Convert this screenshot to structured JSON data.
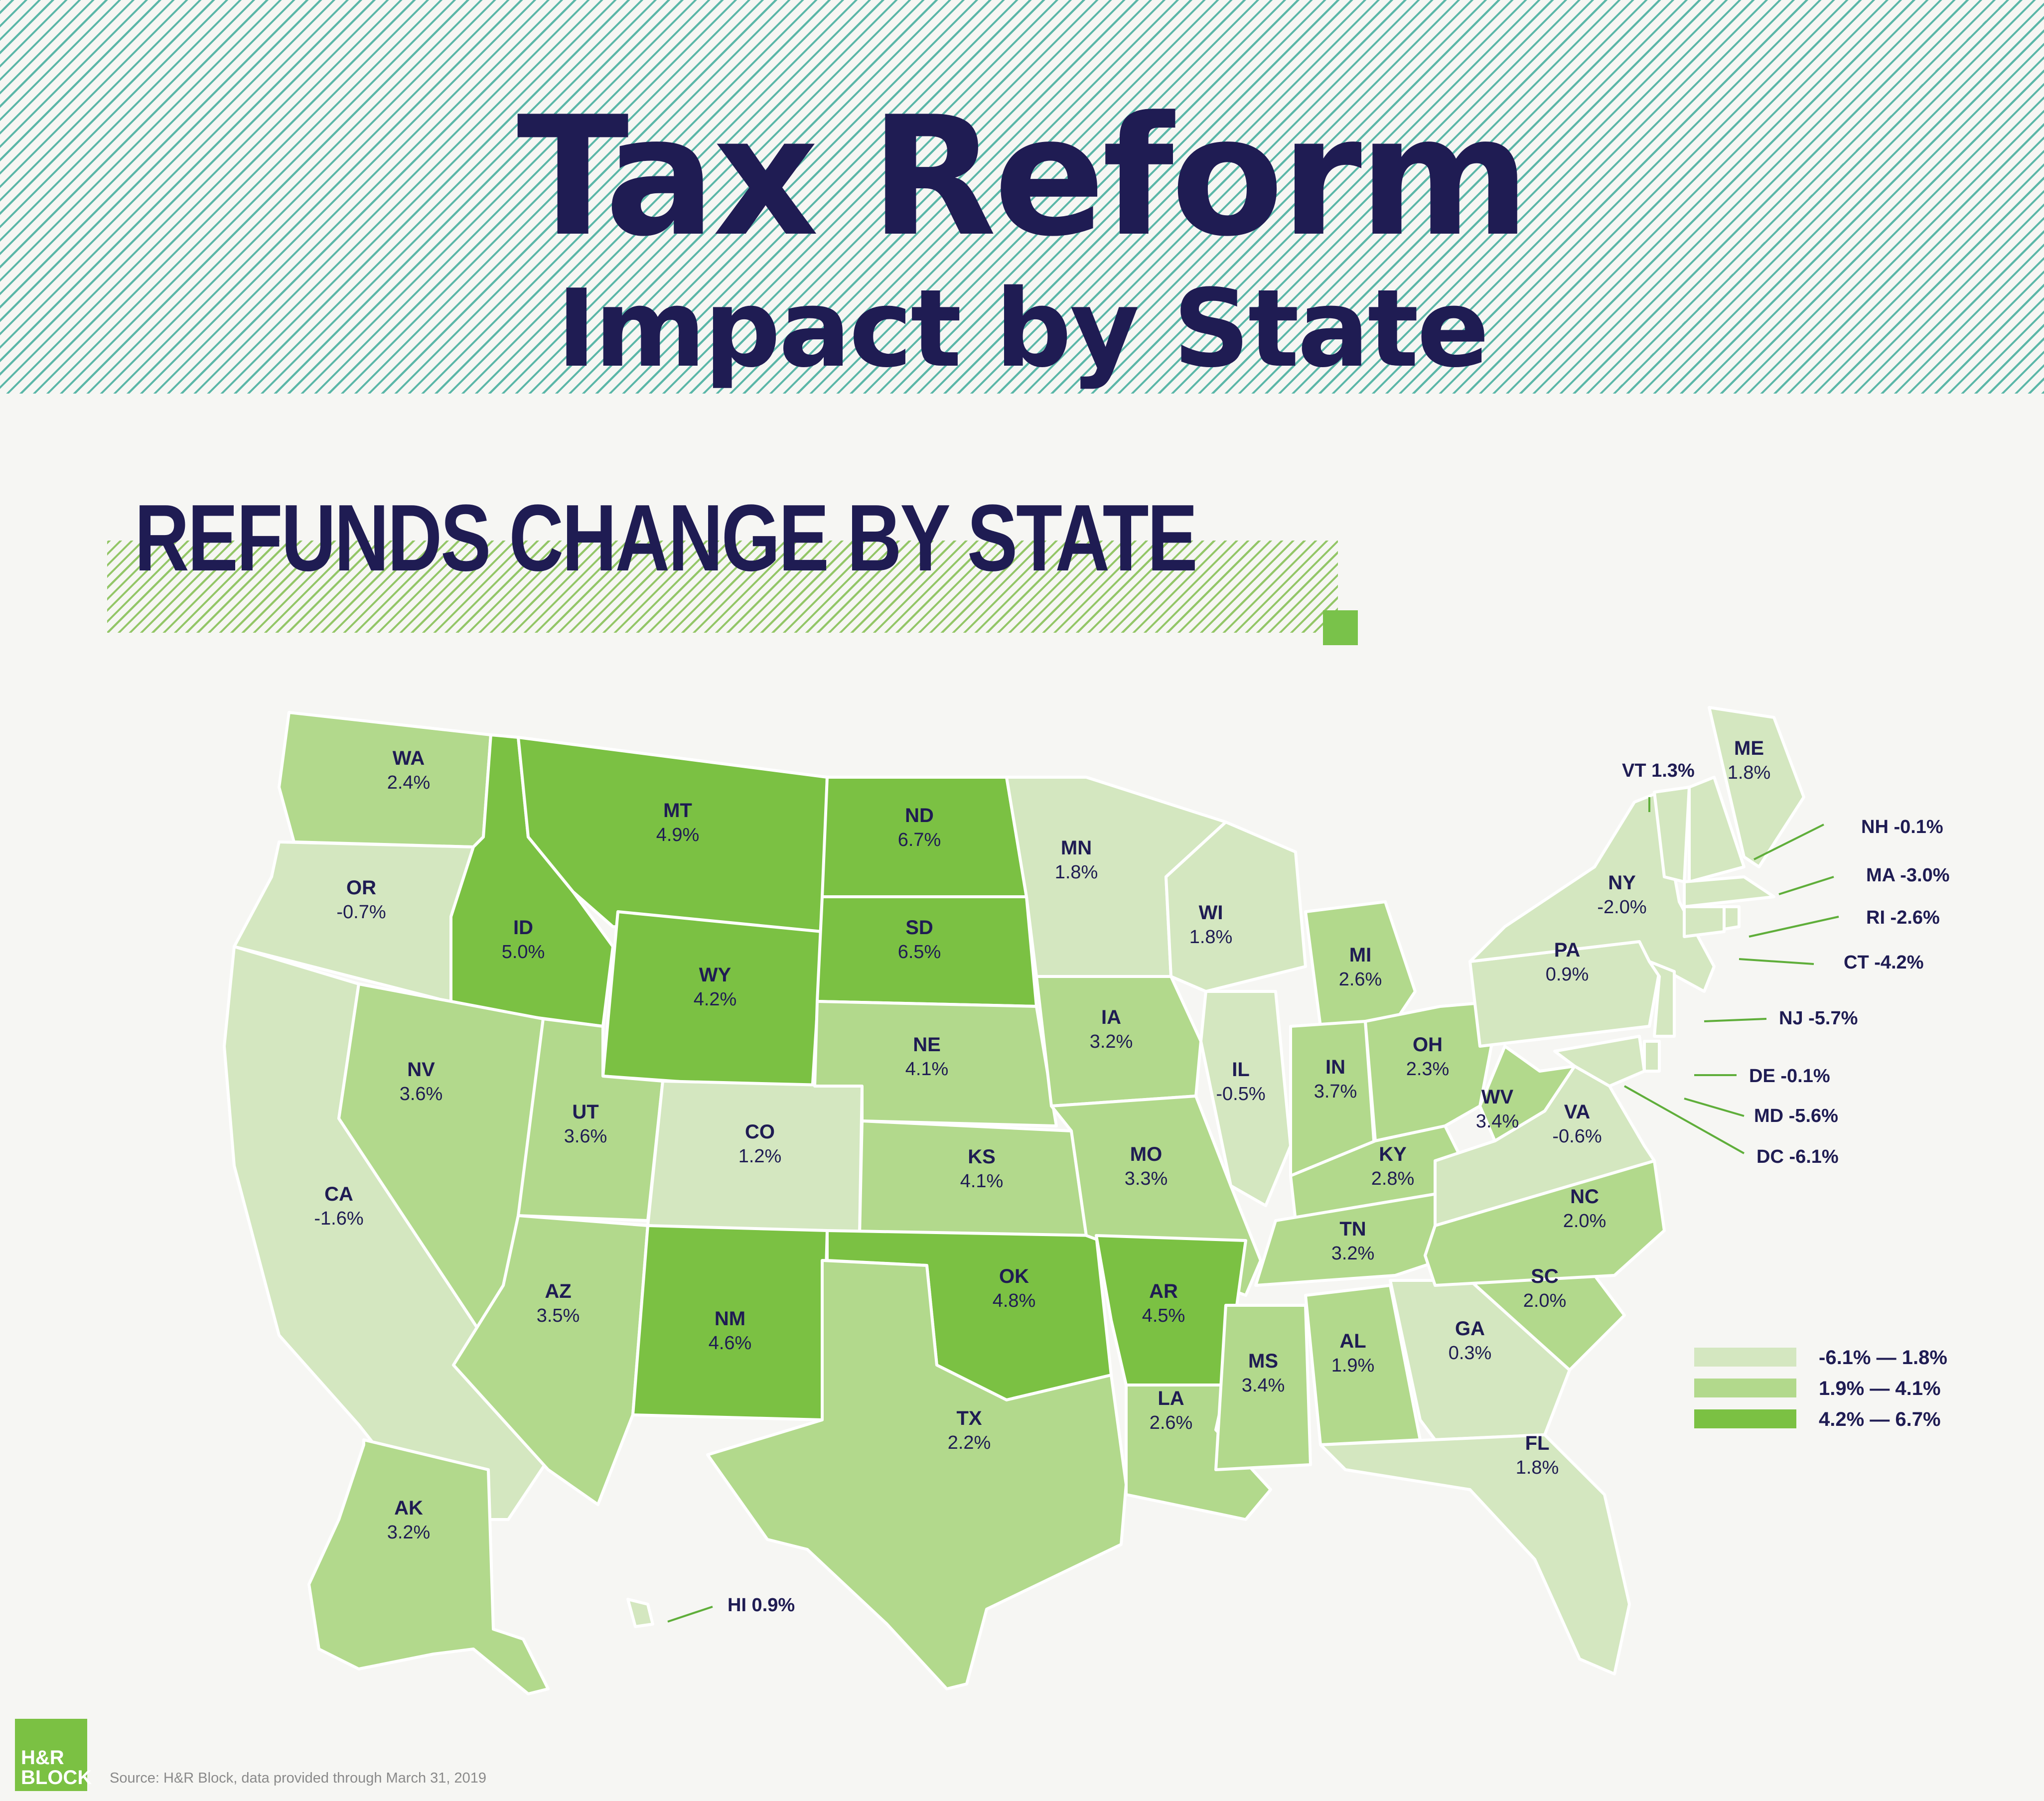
{
  "header": {
    "title": "Tax Reform",
    "subtitle": "Impact by State"
  },
  "section_title": "REFUNDS CHANGE BY STATE",
  "legend": [
    {
      "range": "-6.1% — 1.8%",
      "color": "#d4e7c0"
    },
    {
      "range": "1.9% — 4.1%",
      "color": "#b2d98c"
    },
    {
      "range": "4.2% — 6.7%",
      "color": "#7bc143"
    }
  ],
  "chart_data": {
    "type": "choropleth",
    "unit": "%",
    "states": [
      {
        "code": "WA",
        "value": 2.4,
        "label": "2.4%"
      },
      {
        "code": "OR",
        "value": -0.7,
        "label": "-0.7%"
      },
      {
        "code": "CA",
        "value": -1.6,
        "label": "-1.6%"
      },
      {
        "code": "ID",
        "value": 5.0,
        "label": "5.0%"
      },
      {
        "code": "NV",
        "value": 3.6,
        "label": "3.6%"
      },
      {
        "code": "MT",
        "value": 4.9,
        "label": "4.9%"
      },
      {
        "code": "WY",
        "value": 4.2,
        "label": "4.2%"
      },
      {
        "code": "UT",
        "value": 3.6,
        "label": "3.6%"
      },
      {
        "code": "AZ",
        "value": 3.5,
        "label": "3.5%"
      },
      {
        "code": "CO",
        "value": 1.2,
        "label": "1.2%"
      },
      {
        "code": "NM",
        "value": 4.6,
        "label": "4.6%"
      },
      {
        "code": "ND",
        "value": 6.7,
        "label": "6.7%"
      },
      {
        "code": "SD",
        "value": 6.5,
        "label": "6.5%"
      },
      {
        "code": "NE",
        "value": 4.1,
        "label": "4.1%"
      },
      {
        "code": "KS",
        "value": 4.1,
        "label": "4.1%"
      },
      {
        "code": "OK",
        "value": 4.8,
        "label": "4.8%"
      },
      {
        "code": "TX",
        "value": 2.2,
        "label": "2.2%"
      },
      {
        "code": "MN",
        "value": 1.8,
        "label": "1.8%"
      },
      {
        "code": "IA",
        "value": 3.2,
        "label": "3.2%"
      },
      {
        "code": "MO",
        "value": 3.3,
        "label": "3.3%"
      },
      {
        "code": "AR",
        "value": 4.5,
        "label": "4.5%"
      },
      {
        "code": "LA",
        "value": 2.6,
        "label": "2.6%"
      },
      {
        "code": "WI",
        "value": 1.8,
        "label": "1.8%"
      },
      {
        "code": "IL",
        "value": -0.5,
        "label": "-0.5%"
      },
      {
        "code": "MI",
        "value": 2.6,
        "label": "2.6%"
      },
      {
        "code": "IN",
        "value": 3.7,
        "label": "3.7%"
      },
      {
        "code": "OH",
        "value": 2.3,
        "label": "2.3%"
      },
      {
        "code": "KY",
        "value": 2.8,
        "label": "2.8%"
      },
      {
        "code": "TN",
        "value": 3.2,
        "label": "3.2%"
      },
      {
        "code": "MS",
        "value": 3.4,
        "label": "3.4%"
      },
      {
        "code": "AL",
        "value": 1.9,
        "label": "1.9%"
      },
      {
        "code": "GA",
        "value": 0.3,
        "label": "0.3%"
      },
      {
        "code": "FL",
        "value": 1.8,
        "label": "1.8%"
      },
      {
        "code": "SC",
        "value": 2.0,
        "label": "2.0%"
      },
      {
        "code": "NC",
        "value": 2.0,
        "label": "2.0%"
      },
      {
        "code": "VA",
        "value": -0.6,
        "label": "-0.6%"
      },
      {
        "code": "WV",
        "value": 3.4,
        "label": "3.4%"
      },
      {
        "code": "PA",
        "value": 0.9,
        "label": "0.9%"
      },
      {
        "code": "NY",
        "value": -2.0,
        "label": "-2.0%"
      },
      {
        "code": "ME",
        "value": 1.8,
        "label": "1.8%"
      },
      {
        "code": "AK",
        "value": 3.2,
        "label": "3.2%"
      },
      {
        "code": "VT",
        "value": 1.3,
        "label": "1.3%"
      },
      {
        "code": "NH",
        "value": -0.1,
        "label": "-0.1%"
      },
      {
        "code": "MA",
        "value": -3.0,
        "label": "-3.0%"
      },
      {
        "code": "RI",
        "value": -2.6,
        "label": "-2.6%"
      },
      {
        "code": "CT",
        "value": -4.2,
        "label": "-4.2%"
      },
      {
        "code": "NJ",
        "value": -5.7,
        "label": "-5.7%"
      },
      {
        "code": "DE",
        "value": -0.1,
        "label": "-0.1%"
      },
      {
        "code": "MD",
        "value": -5.6,
        "label": "-5.6%"
      },
      {
        "code": "DC",
        "value": -6.1,
        "label": "-6.1%"
      },
      {
        "code": "HI",
        "value": 0.9,
        "label": "0.9%"
      }
    ]
  },
  "logo": {
    "line1": "H&R",
    "line2": "BLOCK"
  },
  "source": "Source: H&R Block, data provided through March 31, 2019"
}
